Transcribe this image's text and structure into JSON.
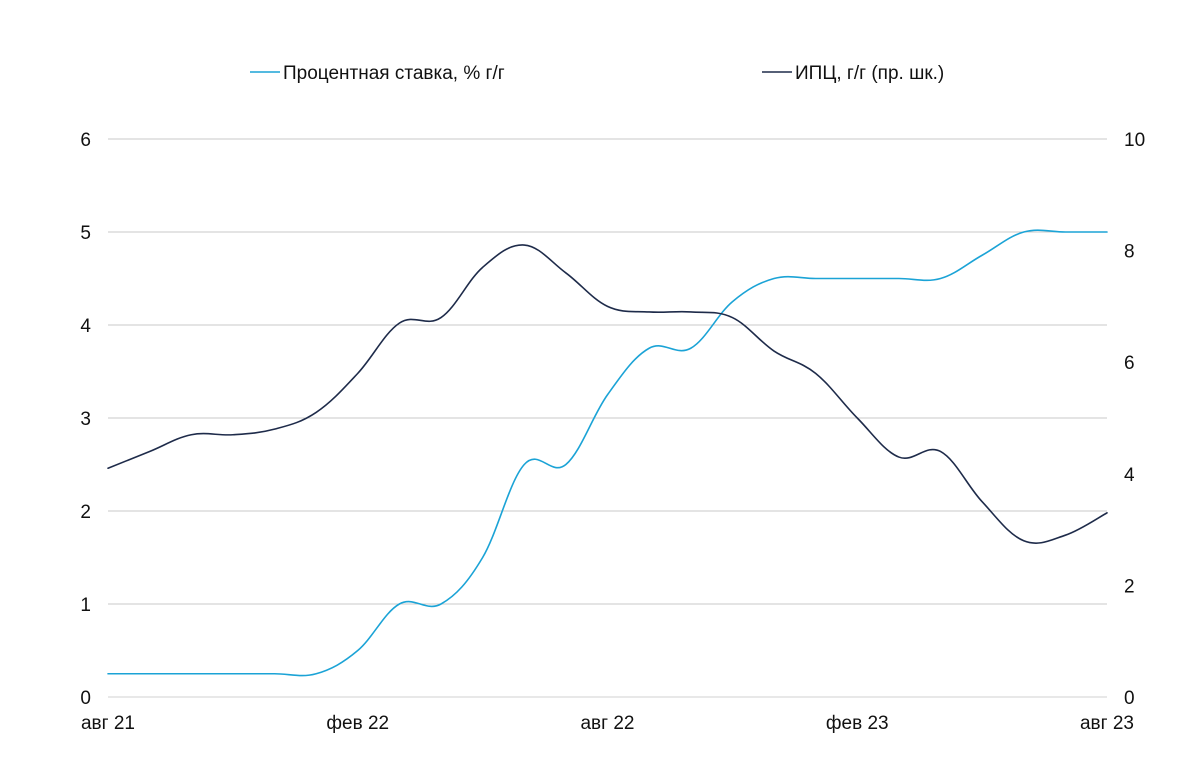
{
  "chart_data": {
    "type": "line",
    "title": "",
    "xlabel": "",
    "ylabel": "",
    "x_tick_labels": [
      "авг 21",
      "фев 22",
      "авг 22",
      "фев 23",
      "авг 23"
    ],
    "x_months": [
      "2021-08",
      "2021-09",
      "2021-10",
      "2021-11",
      "2021-12",
      "2022-01",
      "2022-02",
      "2022-03",
      "2022-04",
      "2022-05",
      "2022-06",
      "2022-07",
      "2022-08",
      "2022-09",
      "2022-10",
      "2022-11",
      "2022-12",
      "2023-01",
      "2023-02",
      "2023-03",
      "2023-04",
      "2023-05",
      "2023-06",
      "2023-07",
      "2023-08"
    ],
    "y_left_ticks": [
      "0",
      "1",
      "2",
      "3",
      "4",
      "5",
      "6"
    ],
    "y_right_ticks": [
      "0",
      "2",
      "4",
      "6",
      "8",
      "10"
    ],
    "ylim_left": [
      0,
      6
    ],
    "ylim_right": [
      0,
      10
    ],
    "grid": true,
    "legend_position": "top",
    "series": [
      {
        "name": "Процентная ставка, % г/г",
        "axis": "left",
        "color": "#1ba3d6",
        "values": [
          0.25,
          0.25,
          0.25,
          0.25,
          0.25,
          0.25,
          0.5,
          1.0,
          1.0,
          1.5,
          2.5,
          2.5,
          3.25,
          3.75,
          3.75,
          4.25,
          4.5,
          4.5,
          4.5,
          4.5,
          4.5,
          4.75,
          5.0,
          5.0,
          5.0
        ]
      },
      {
        "name": "ИПЦ, г/г (пр. шк.)",
        "axis": "right",
        "color": "#1e2b4a",
        "values": [
          4.1,
          4.4,
          4.7,
          4.7,
          4.8,
          5.1,
          5.8,
          6.7,
          6.8,
          7.7,
          8.1,
          7.6,
          7.0,
          6.9,
          6.9,
          6.8,
          6.2,
          5.8,
          5.0,
          4.3,
          4.4,
          3.5,
          2.8,
          2.9,
          3.3
        ]
      }
    ]
  }
}
